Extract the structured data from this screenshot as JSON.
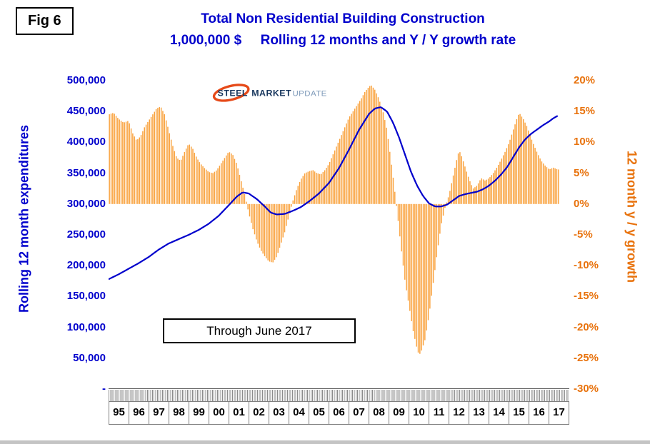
{
  "figure": {
    "label": "Fig 6"
  },
  "title": {
    "line1": "Total Non Residential Building Construction",
    "line2": "1,000,000 $     Rolling 12 months and Y / Y growth rate",
    "color": "#0000CC"
  },
  "logo": {
    "steel": "STEEL",
    "market": "MARKET",
    "update": "UPDATE",
    "swoosh_color": "#E64A19",
    "steel_color": "#17365D",
    "update_color": "#7C98B8"
  },
  "annotation": {
    "text": "Through June 2017"
  },
  "chart_data": {
    "type": "combo",
    "title": "Total Non Residential Building Construction, 1,000,000 $, Rolling 12 months and Y / Y growth rate",
    "x_range": [
      1995,
      2018
    ],
    "x_ticklabels": [
      "95",
      "96",
      "97",
      "98",
      "99",
      "00",
      "01",
      "02",
      "03",
      "04",
      "05",
      "06",
      "07",
      "08",
      "09",
      "10",
      "11",
      "12",
      "13",
      "14",
      "15",
      "16",
      "17"
    ],
    "grid": false,
    "legend": "none",
    "left_axis": {
      "label": "Rolling 12 month expenditures",
      "lim": [
        0,
        500000
      ],
      "ticklabels": [
        "500,000",
        "450,000",
        "400,000",
        "350,000",
        "300,000",
        "250,000",
        "200,000",
        "150,000",
        "100,000",
        "50,000",
        "-"
      ],
      "color": "#0000CC"
    },
    "right_axis": {
      "label": "12 month y / y growth",
      "lim": [
        -30,
        20
      ],
      "ticklabels": [
        "20%",
        "15%",
        "10%",
        "5%",
        "0%",
        "-5%",
        "-10%",
        "-15%",
        "-20%",
        "-25%",
        "-30%"
      ],
      "color": "#E8720C"
    },
    "series": [
      {
        "name": "Rolling 12 month expenditures",
        "type": "line",
        "axis": "left",
        "color": "#0000CC",
        "points": [
          [
            1995.0,
            178000
          ],
          [
            1995.5,
            186000
          ],
          [
            1996.0,
            195000
          ],
          [
            1996.5,
            204000
          ],
          [
            1997.0,
            214000
          ],
          [
            1997.5,
            226000
          ],
          [
            1998.0,
            236000
          ],
          [
            1998.5,
            243000
          ],
          [
            1999.0,
            250000
          ],
          [
            1999.5,
            258000
          ],
          [
            2000.0,
            268000
          ],
          [
            2000.5,
            281000
          ],
          [
            2001.0,
            298000
          ],
          [
            2001.4,
            312000
          ],
          [
            2001.7,
            319000
          ],
          [
            2002.0,
            317000
          ],
          [
            2002.4,
            308000
          ],
          [
            2002.8,
            296000
          ],
          [
            2003.1,
            286000
          ],
          [
            2003.4,
            283000
          ],
          [
            2003.8,
            284000
          ],
          [
            2004.2,
            289000
          ],
          [
            2004.6,
            295000
          ],
          [
            2005.0,
            304000
          ],
          [
            2005.5,
            317000
          ],
          [
            2006.0,
            334000
          ],
          [
            2006.5,
            358000
          ],
          [
            2007.0,
            388000
          ],
          [
            2007.5,
            420000
          ],
          [
            2008.0,
            446000
          ],
          [
            2008.3,
            455000
          ],
          [
            2008.6,
            457000
          ],
          [
            2008.9,
            450000
          ],
          [
            2009.2,
            432000
          ],
          [
            2009.5,
            408000
          ],
          [
            2009.8,
            380000
          ],
          [
            2010.1,
            352000
          ],
          [
            2010.4,
            330000
          ],
          [
            2010.7,
            313000
          ],
          [
            2011.0,
            301000
          ],
          [
            2011.3,
            296000
          ],
          [
            2011.6,
            296000
          ],
          [
            2011.9,
            299000
          ],
          [
            2012.2,
            306000
          ],
          [
            2012.5,
            313000
          ],
          [
            2012.8,
            316000
          ],
          [
            2013.1,
            318000
          ],
          [
            2013.4,
            320000
          ],
          [
            2013.7,
            324000
          ],
          [
            2014.0,
            330000
          ],
          [
            2014.3,
            338000
          ],
          [
            2014.6,
            348000
          ],
          [
            2014.9,
            360000
          ],
          [
            2015.2,
            376000
          ],
          [
            2015.5,
            392000
          ],
          [
            2015.8,
            405000
          ],
          [
            2016.1,
            414000
          ],
          [
            2016.4,
            421000
          ],
          [
            2016.7,
            428000
          ],
          [
            2017.0,
            434000
          ],
          [
            2017.2,
            439000
          ],
          [
            2017.42,
            443000
          ]
        ]
      },
      {
        "name": "12 month y / y growth rate",
        "type": "bar",
        "axis": "right",
        "color": "#F9A13B",
        "points": [
          [
            1995.0,
            14.5
          ],
          [
            1995.25,
            14.8
          ],
          [
            1995.5,
            13.8
          ],
          [
            1995.75,
            13.2
          ],
          [
            1996.0,
            13.5
          ],
          [
            1996.2,
            11.5
          ],
          [
            1996.4,
            10.3
          ],
          [
            1996.6,
            11.0
          ],
          [
            1996.8,
            12.5
          ],
          [
            1997.0,
            13.5
          ],
          [
            1997.2,
            14.5
          ],
          [
            1997.4,
            15.5
          ],
          [
            1997.6,
            15.8
          ],
          [
            1997.8,
            14.5
          ],
          [
            1998.0,
            12.0
          ],
          [
            1998.2,
            9.5
          ],
          [
            1998.4,
            7.5
          ],
          [
            1998.6,
            7.0
          ],
          [
            1998.8,
            8.5
          ],
          [
            1999.0,
            9.8
          ],
          [
            1999.2,
            9.0
          ],
          [
            1999.4,
            7.5
          ],
          [
            1999.6,
            6.5
          ],
          [
            1999.8,
            5.8
          ],
          [
            2000.0,
            5.2
          ],
          [
            2000.2,
            5.0
          ],
          [
            2000.4,
            5.5
          ],
          [
            2000.6,
            6.5
          ],
          [
            2000.8,
            7.5
          ],
          [
            2001.0,
            8.5
          ],
          [
            2001.2,
            8.0
          ],
          [
            2001.4,
            6.5
          ],
          [
            2001.6,
            4.0
          ],
          [
            2001.8,
            1.5
          ],
          [
            2002.0,
            -1.5
          ],
          [
            2002.2,
            -4.0
          ],
          [
            2002.4,
            -6.0
          ],
          [
            2002.6,
            -7.5
          ],
          [
            2002.8,
            -8.5
          ],
          [
            2003.0,
            -9.3
          ],
          [
            2003.2,
            -9.5
          ],
          [
            2003.4,
            -8.5
          ],
          [
            2003.6,
            -6.5
          ],
          [
            2003.8,
            -4.5
          ],
          [
            2004.0,
            -2.0
          ],
          [
            2004.2,
            0.5
          ],
          [
            2004.4,
            2.5
          ],
          [
            2004.6,
            4.0
          ],
          [
            2004.8,
            5.0
          ],
          [
            2005.0,
            5.3
          ],
          [
            2005.2,
            5.5
          ],
          [
            2005.4,
            5.0
          ],
          [
            2005.6,
            4.8
          ],
          [
            2005.8,
            5.5
          ],
          [
            2006.0,
            6.5
          ],
          [
            2006.2,
            8.0
          ],
          [
            2006.4,
            9.5
          ],
          [
            2006.6,
            11.0
          ],
          [
            2006.8,
            12.5
          ],
          [
            2007.0,
            14.0
          ],
          [
            2007.2,
            15.0
          ],
          [
            2007.4,
            16.0
          ],
          [
            2007.6,
            17.0
          ],
          [
            2007.8,
            18.2
          ],
          [
            2008.0,
            19.0
          ],
          [
            2008.1,
            19.3
          ],
          [
            2008.3,
            18.5
          ],
          [
            2008.5,
            17.0
          ],
          [
            2008.7,
            15.0
          ],
          [
            2008.9,
            12.0
          ],
          [
            2009.0,
            9.5
          ],
          [
            2009.2,
            4.5
          ],
          [
            2009.4,
            -1.0
          ],
          [
            2009.6,
            -7.0
          ],
          [
            2009.8,
            -12.5
          ],
          [
            2010.0,
            -16.5
          ],
          [
            2010.2,
            -20.5
          ],
          [
            2010.4,
            -23.5
          ],
          [
            2010.5,
            -24.5
          ],
          [
            2010.6,
            -24.0
          ],
          [
            2010.8,
            -22.0
          ],
          [
            2011.0,
            -18.0
          ],
          [
            2011.2,
            -13.0
          ],
          [
            2011.4,
            -8.0
          ],
          [
            2011.6,
            -3.5
          ],
          [
            2011.8,
            -0.5
          ],
          [
            2012.0,
            1.5
          ],
          [
            2012.2,
            4.5
          ],
          [
            2012.4,
            7.5
          ],
          [
            2012.5,
            8.7
          ],
          [
            2012.6,
            8.0
          ],
          [
            2012.8,
            6.0
          ],
          [
            2013.0,
            4.0
          ],
          [
            2013.2,
            2.5
          ],
          [
            2013.4,
            3.0
          ],
          [
            2013.6,
            4.2
          ],
          [
            2013.8,
            3.8
          ],
          [
            2014.0,
            4.2
          ],
          [
            2014.2,
            5.0
          ],
          [
            2014.4,
            6.0
          ],
          [
            2014.6,
            7.2
          ],
          [
            2014.8,
            8.5
          ],
          [
            2015.0,
            10.0
          ],
          [
            2015.2,
            12.0
          ],
          [
            2015.4,
            14.0
          ],
          [
            2015.5,
            14.8
          ],
          [
            2015.7,
            13.8
          ],
          [
            2015.9,
            12.5
          ],
          [
            2016.0,
            11.5
          ],
          [
            2016.2,
            9.8
          ],
          [
            2016.4,
            8.3
          ],
          [
            2016.6,
            7.0
          ],
          [
            2016.8,
            6.2
          ],
          [
            2017.0,
            5.6
          ],
          [
            2017.2,
            5.9
          ],
          [
            2017.42,
            5.6
          ]
        ]
      }
    ]
  }
}
